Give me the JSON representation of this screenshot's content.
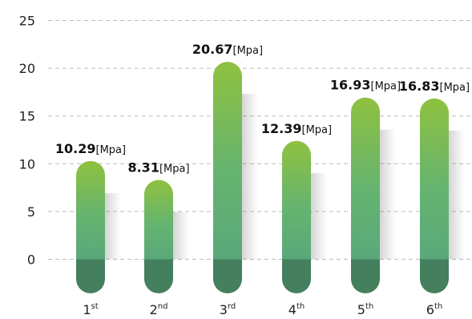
{
  "chart_data": {
    "type": "bar",
    "categories": [
      {
        "base": "1",
        "sup": "st"
      },
      {
        "base": "2",
        "sup": "nd"
      },
      {
        "base": "3",
        "sup": "rd"
      },
      {
        "base": "4",
        "sup": "th"
      },
      {
        "base": "5",
        "sup": "th"
      },
      {
        "base": "6",
        "sup": "th"
      }
    ],
    "values": [
      10.29,
      8.31,
      20.67,
      12.39,
      16.93,
      16.83
    ],
    "value_labels": [
      "10.29",
      "8.31",
      "20.67",
      "12.39",
      "16.93",
      "16.83"
    ],
    "value_unit": "[Mpa]",
    "yticks": [
      0,
      5,
      10,
      15,
      20,
      25
    ],
    "ylim": [
      0,
      25
    ],
    "grid": true,
    "colors": {
      "bar_top": "#8fc13f",
      "bar_mid": "#66b46f",
      "bar_bottom": "#5aa87a",
      "base_pill": "#447f5e",
      "grid": "#bdbdbd"
    }
  }
}
